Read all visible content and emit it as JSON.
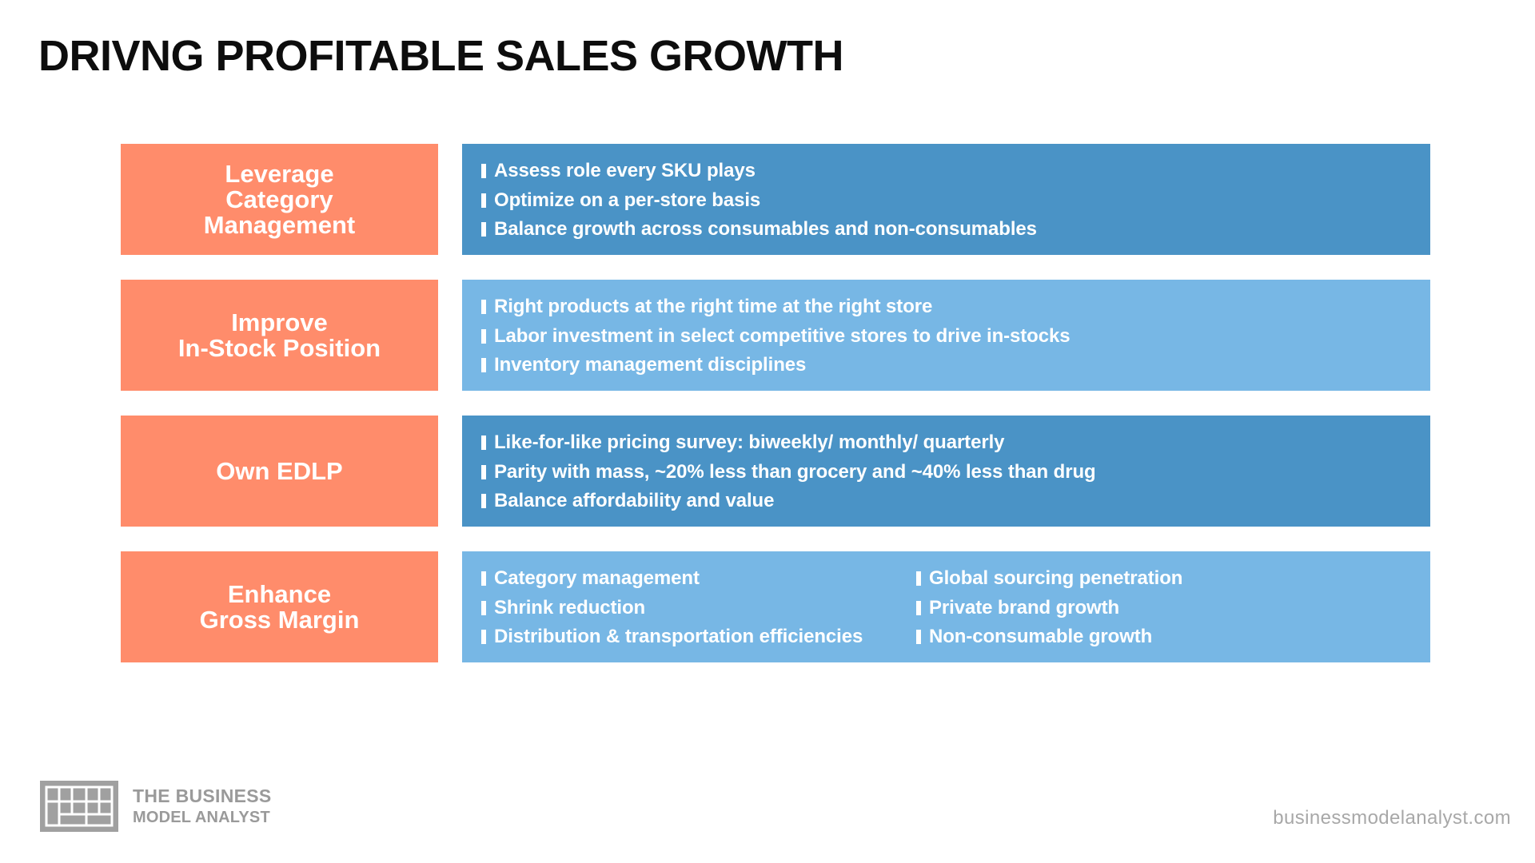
{
  "title": "DRIVNG PROFITABLE SALES GROWTH",
  "colors": {
    "label_bg": "#ff8c6b",
    "detail_dark": "#4a93c6",
    "detail_light": "#77b7e5",
    "text_on_color": "#ffffff",
    "footer_gray": "#a0a0a0"
  },
  "rows": [
    {
      "label": "Leverage\nCategory\nManagement",
      "style": "dark",
      "bullets_col1": [
        "Assess role every SKU plays",
        "Optimize on a per-store basis",
        "Balance growth across consumables and non-consumables"
      ],
      "bullets_col2": []
    },
    {
      "label": "Improve\nIn-Stock Position",
      "style": "light",
      "bullets_col1": [
        "Right products at the right time at the right store",
        "Labor investment in select competitive stores to drive in-stocks",
        "Inventory management disciplines"
      ],
      "bullets_col2": []
    },
    {
      "label": "Own EDLP",
      "style": "dark",
      "bullets_col1": [
        "Like-for-like pricing survey: biweekly/ monthly/ quarterly",
        "Parity with mass, ~20% less than grocery and ~40% less than drug",
        "Balance affordability and value"
      ],
      "bullets_col2": []
    },
    {
      "label": "Enhance\nGross Margin",
      "style": "light",
      "bullets_col1": [
        "Category management",
        "Shrink reduction",
        "Distribution & transportation efficiencies"
      ],
      "bullets_col2": [
        "Global sourcing penetration",
        "Private brand growth",
        "Non-consumable growth"
      ]
    }
  ],
  "footer": {
    "logo_icon": "grid-logo-icon",
    "logo_line1": "THE BUSINESS",
    "logo_line2": "MODEL ANALYST",
    "url": "businessmodelanalyst.com"
  }
}
